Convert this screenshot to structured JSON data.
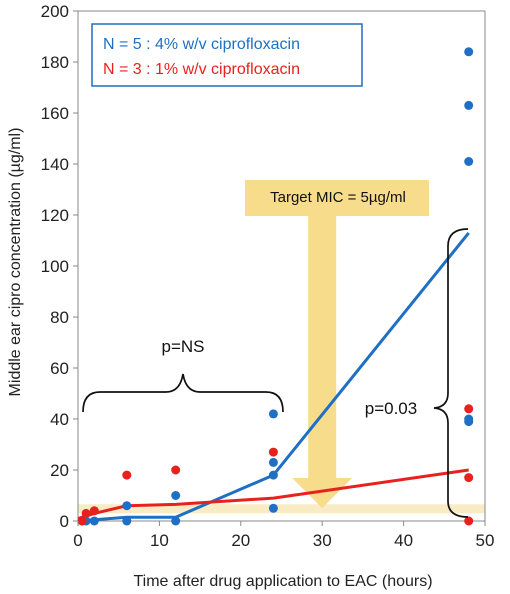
{
  "chart_data": {
    "type": "scatter",
    "title": "",
    "xlabel": "Time after drug application to EAC (hours)",
    "ylabel": "Middle ear cipro concentration (µg/ml)",
    "xlim": [
      0,
      50
    ],
    "ylim": [
      0,
      200
    ],
    "x_ticks": [
      "0",
      "10",
      "20",
      "30",
      "40",
      "50"
    ],
    "y_ticks": [
      "0",
      "20",
      "40",
      "60",
      "80",
      "100",
      "120",
      "140",
      "160",
      "180",
      "200"
    ],
    "grid": false,
    "legend_position": "top-left",
    "series": [
      {
        "name": "N = 5 : 4% w/v ciprofloxacin",
        "color": "#1f6fc4",
        "points": [
          [
            0.5,
            0
          ],
          [
            1,
            0
          ],
          [
            2,
            0
          ],
          [
            6,
            0
          ],
          [
            6,
            6
          ],
          [
            12,
            0
          ],
          [
            12,
            10
          ],
          [
            24,
            5
          ],
          [
            24,
            18
          ],
          [
            24,
            23
          ],
          [
            24,
            42
          ],
          [
            48,
            39
          ],
          [
            48,
            40
          ],
          [
            48,
            141
          ],
          [
            48,
            163
          ],
          [
            48,
            184
          ]
        ],
        "trend": [
          [
            0,
            0
          ],
          [
            2,
            0.5
          ],
          [
            6,
            1.5
          ],
          [
            12,
            1.5
          ],
          [
            24,
            18
          ],
          [
            48,
            113
          ]
        ]
      },
      {
        "name": "N = 3 : 1% w/v ciprofloxacin",
        "color": "#e8211e",
        "points": [
          [
            0.5,
            0
          ],
          [
            1,
            3
          ],
          [
            2,
            4
          ],
          [
            6,
            18
          ],
          [
            12,
            20
          ],
          [
            24,
            27
          ],
          [
            48,
            0
          ],
          [
            48,
            17
          ],
          [
            48,
            44
          ]
        ],
        "trend": [
          [
            0,
            1
          ],
          [
            2,
            3
          ],
          [
            6,
            6
          ],
          [
            12,
            6.5
          ],
          [
            24,
            9
          ],
          [
            48,
            20
          ]
        ]
      }
    ],
    "annotations": {
      "left_bracket_label": "p=NS",
      "right_bracket_label": "p=0.03",
      "target_label": "Target MIC = 5µg/ml",
      "target_value": 5,
      "target_x": 30
    }
  }
}
